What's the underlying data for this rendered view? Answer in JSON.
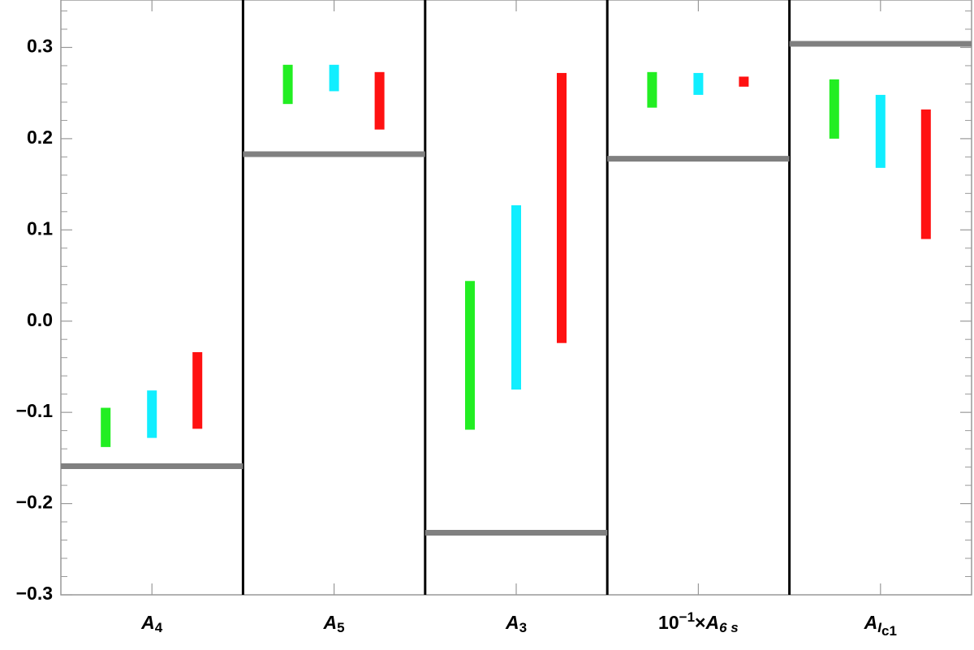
{
  "chart_data": {
    "type": "floating-bar",
    "categories": [
      [
        {
          "t": "A",
          "s": "i"
        },
        {
          "t": "4",
          "s": "sub"
        }
      ],
      [
        {
          "t": "A",
          "s": "i"
        },
        {
          "t": "5",
          "s": "sub"
        }
      ],
      [
        {
          "t": "A",
          "s": "i"
        },
        {
          "t": "3",
          "s": "sub"
        }
      ],
      [
        {
          "t": "10",
          "s": "n"
        },
        {
          "t": "−1",
          "s": "sup"
        },
        {
          "t": "×",
          "s": "n"
        },
        {
          "t": "A",
          "s": "i"
        },
        {
          "t": "6 s",
          "s": "subi"
        }
      ],
      [
        {
          "t": "A",
          "s": "i"
        },
        {
          "t": "I",
          "s": "subi"
        },
        {
          "t": "c1",
          "s": "sub2"
        }
      ]
    ],
    "series": [
      {
        "color": "#22ee22",
        "values": [
          [
            -0.138,
            -0.095
          ],
          [
            0.238,
            0.281
          ],
          [
            -0.119,
            0.044
          ],
          [
            0.234,
            0.273
          ],
          [
            0.2,
            0.265
          ]
        ]
      },
      {
        "color": "#11eeff",
        "values": [
          [
            -0.128,
            -0.076
          ],
          [
            0.252,
            0.281
          ],
          [
            -0.075,
            0.127
          ],
          [
            0.248,
            0.272
          ],
          [
            0.168,
            0.248
          ]
        ]
      },
      {
        "color": "#ff1111",
        "values": [
          [
            -0.118,
            -0.034
          ],
          [
            0.21,
            0.273
          ],
          [
            -0.024,
            0.272
          ],
          [
            0.257,
            0.268
          ],
          [
            0.09,
            0.232
          ]
        ]
      }
    ],
    "reference": {
      "color": "#808080",
      "values": [
        -0.159,
        0.183,
        -0.232,
        0.178,
        0.304
      ]
    },
    "ylim": [
      -0.3,
      0.352
    ],
    "yticks": [
      {
        "value": -0.3,
        "label": "−0.3"
      },
      {
        "value": -0.2,
        "label": "−0.2"
      },
      {
        "value": -0.1,
        "label": "−0.1"
      },
      {
        "value": 0,
        "label": "0.0"
      },
      0.1,
      0.2,
      0.3
    ],
    "minor_yticks": [
      -0.28,
      -0.26,
      -0.24,
      -0.22,
      -0.18,
      -0.16,
      -0.14,
      -0.12,
      -0.08,
      -0.06,
      -0.04,
      -0.02,
      0.02,
      0.04,
      0.06,
      0.08,
      0.12,
      0.14,
      0.16,
      0.18,
      0.22,
      0.24,
      0.26,
      0.28,
      0.32,
      0.34
    ]
  }
}
